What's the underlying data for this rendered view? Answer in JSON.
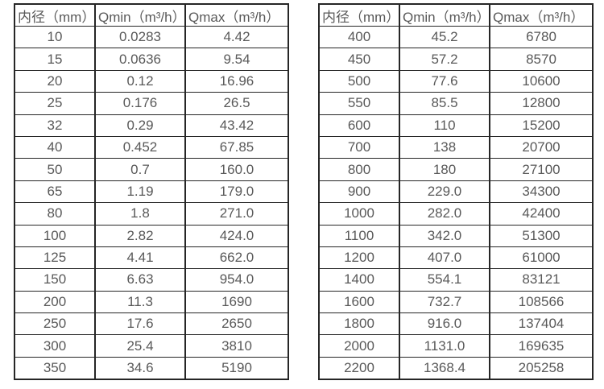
{
  "colors": {
    "background": "#ffffff",
    "border": "#262626",
    "text": "#595959"
  },
  "left_table": {
    "headers": [
      "内径（mm）",
      "Qmin（m³/h）",
      "Qmax（m³/h）"
    ],
    "rows": [
      [
        "10",
        "0.0283",
        "4.42"
      ],
      [
        "15",
        "0.0636",
        "9.54"
      ],
      [
        "20",
        "0.12",
        "16.96"
      ],
      [
        "25",
        "0.176",
        "26.5"
      ],
      [
        "32",
        "0.29",
        "43.42"
      ],
      [
        "40",
        "0.452",
        "67.85"
      ],
      [
        "50",
        "0.7",
        "160.0"
      ],
      [
        "65",
        "1.19",
        "179.0"
      ],
      [
        "80",
        "1.8",
        "271.0"
      ],
      [
        "100",
        "2.82",
        "424.0"
      ],
      [
        "125",
        "4.41",
        "662.0"
      ],
      [
        "150",
        "6.63",
        "954.0"
      ],
      [
        "200",
        "11.3",
        "1690"
      ],
      [
        "250",
        "17.6",
        "2650"
      ],
      [
        "300",
        "25.4",
        "3810"
      ],
      [
        "350",
        "34.6",
        "5190"
      ]
    ]
  },
  "right_table": {
    "headers": [
      "内径（mm）",
      "Qmin（m³/h）",
      "Qmax（m³/h）"
    ],
    "rows": [
      [
        "400",
        "45.2",
        "6780"
      ],
      [
        "450",
        "57.2",
        "8570"
      ],
      [
        "500",
        "77.6",
        "10600"
      ],
      [
        "550",
        "85.5",
        "12800"
      ],
      [
        "600",
        "110",
        "15200"
      ],
      [
        "700",
        "138",
        "20700"
      ],
      [
        "800",
        "180",
        "27100"
      ],
      [
        "900",
        "229.0",
        "34300"
      ],
      [
        "1000",
        "282.0",
        "42400"
      ],
      [
        "1100",
        "342.0",
        "51300"
      ],
      [
        "1200",
        "407.0",
        "61000"
      ],
      [
        "1400",
        "554.1",
        "83121"
      ],
      [
        "1600",
        "732.7",
        "108566"
      ],
      [
        "1800",
        "916.0",
        "137404"
      ],
      [
        "2000",
        "1131.0",
        "169635"
      ],
      [
        "2200",
        "1368.4",
        "205258"
      ]
    ]
  }
}
